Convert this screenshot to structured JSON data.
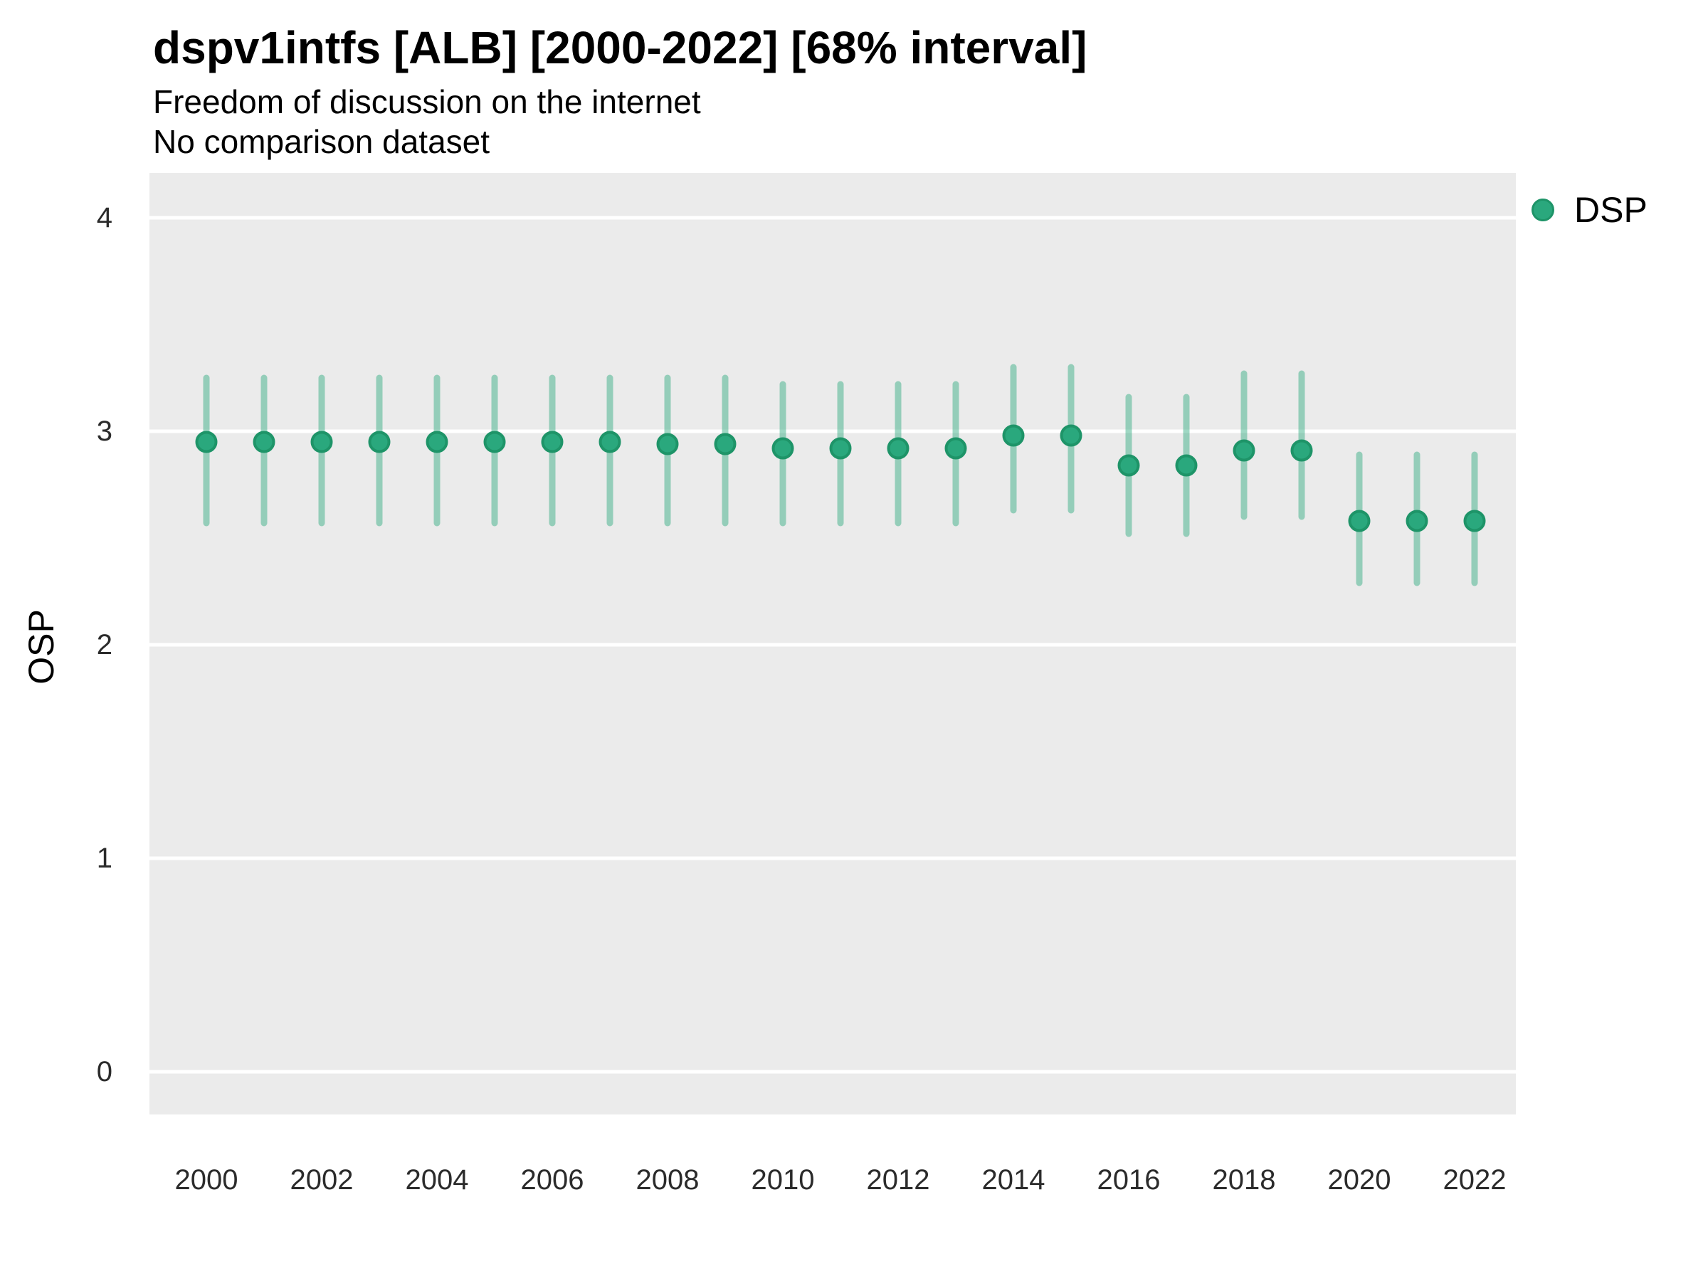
{
  "header": {
    "title": "dspv1intfs [ALB] [2000-2022] [68% interval]",
    "subtitle": "Freedom of discussion on the internet",
    "note": "No comparison dataset"
  },
  "legend": {
    "position": "right",
    "items": [
      {
        "label": "DSP",
        "color": "#2AA87D"
      }
    ]
  },
  "colors": {
    "point_fill": "#2AA87D",
    "point_stroke": "#1E9468",
    "interval_line": "rgba(42,168,125,0.45)",
    "panel_background": "#EBEBEB",
    "gridline": "#FFFFFF",
    "text": "#000000",
    "tick_text": "#2B2B2B"
  },
  "chart_data": {
    "type": "scatter",
    "title": "dspv1intfs [ALB] [2000-2022] [68% interval]",
    "subtitle": "Freedom of discussion on the internet",
    "note": "No comparison dataset",
    "xlabel": "",
    "ylabel": "OSP",
    "xlim": [
      2000,
      2022
    ],
    "ylim": [
      0,
      4
    ],
    "x_ticks": [
      2000,
      2002,
      2004,
      2006,
      2008,
      2010,
      2012,
      2014,
      2016,
      2018,
      2020,
      2022
    ],
    "y_ticks": [
      0,
      1,
      2,
      3,
      4
    ],
    "grid": "horizontal-major-only",
    "legend_position": "right",
    "interval": "68%",
    "series": [
      {
        "name": "DSP",
        "x": [
          2000,
          2001,
          2002,
          2003,
          2004,
          2005,
          2006,
          2007,
          2008,
          2009,
          2010,
          2011,
          2012,
          2013,
          2014,
          2015,
          2016,
          2017,
          2018,
          2019,
          2020,
          2021,
          2022
        ],
        "y": [
          2.95,
          2.95,
          2.95,
          2.95,
          2.95,
          2.95,
          2.95,
          2.95,
          2.94,
          2.94,
          2.92,
          2.92,
          2.92,
          2.92,
          2.98,
          2.98,
          2.84,
          2.84,
          2.91,
          2.91,
          2.58,
          2.58,
          2.58
        ],
        "interval_low": [
          2.57,
          2.57,
          2.57,
          2.57,
          2.57,
          2.57,
          2.57,
          2.57,
          2.57,
          2.57,
          2.57,
          2.57,
          2.57,
          2.57,
          2.63,
          2.63,
          2.52,
          2.52,
          2.6,
          2.6,
          2.29,
          2.29,
          2.29
        ],
        "interval_high": [
          3.25,
          3.25,
          3.25,
          3.25,
          3.25,
          3.25,
          3.25,
          3.25,
          3.25,
          3.25,
          3.22,
          3.22,
          3.22,
          3.22,
          3.3,
          3.3,
          3.16,
          3.16,
          3.27,
          3.27,
          2.89,
          2.89,
          2.89
        ]
      }
    ]
  }
}
